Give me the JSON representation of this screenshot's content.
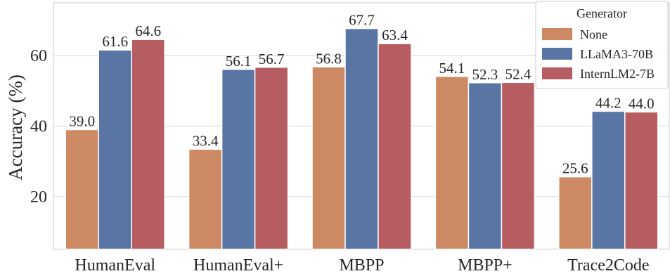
{
  "chart_data": {
    "type": "bar",
    "title": "",
    "xlabel": "",
    "ylabel": "Accuracy (%)",
    "ylim": [
      5,
      75
    ],
    "yticks": [
      20,
      40,
      60
    ],
    "grid": "y",
    "legend_position": "top-right",
    "legend_title": "Generator",
    "categories": [
      "HumanEval",
      "HumanEval+",
      "MBPP",
      "MBPP+",
      "Trace2Code"
    ],
    "series": [
      {
        "name": "None",
        "color": "#cc8963",
        "values": [
          39.0,
          33.4,
          56.8,
          54.1,
          25.6
        ],
        "labels": [
          "39.0",
          "33.4",
          "56.8",
          "54.1",
          "25.6"
        ]
      },
      {
        "name": "LLaMA3-70B",
        "color": "#5975a4",
        "values": [
          61.6,
          56.1,
          67.7,
          52.3,
          44.2
        ],
        "labels": [
          "61.6",
          "56.1",
          "67.7",
          "52.3",
          "44.2"
        ]
      },
      {
        "name": "InternLM2-7B",
        "color": "#b55d60",
        "values": [
          64.6,
          56.7,
          63.4,
          52.4,
          44.0
        ],
        "labels": [
          "64.6",
          "56.7",
          "63.4",
          "52.4",
          "44.0"
        ]
      }
    ]
  }
}
